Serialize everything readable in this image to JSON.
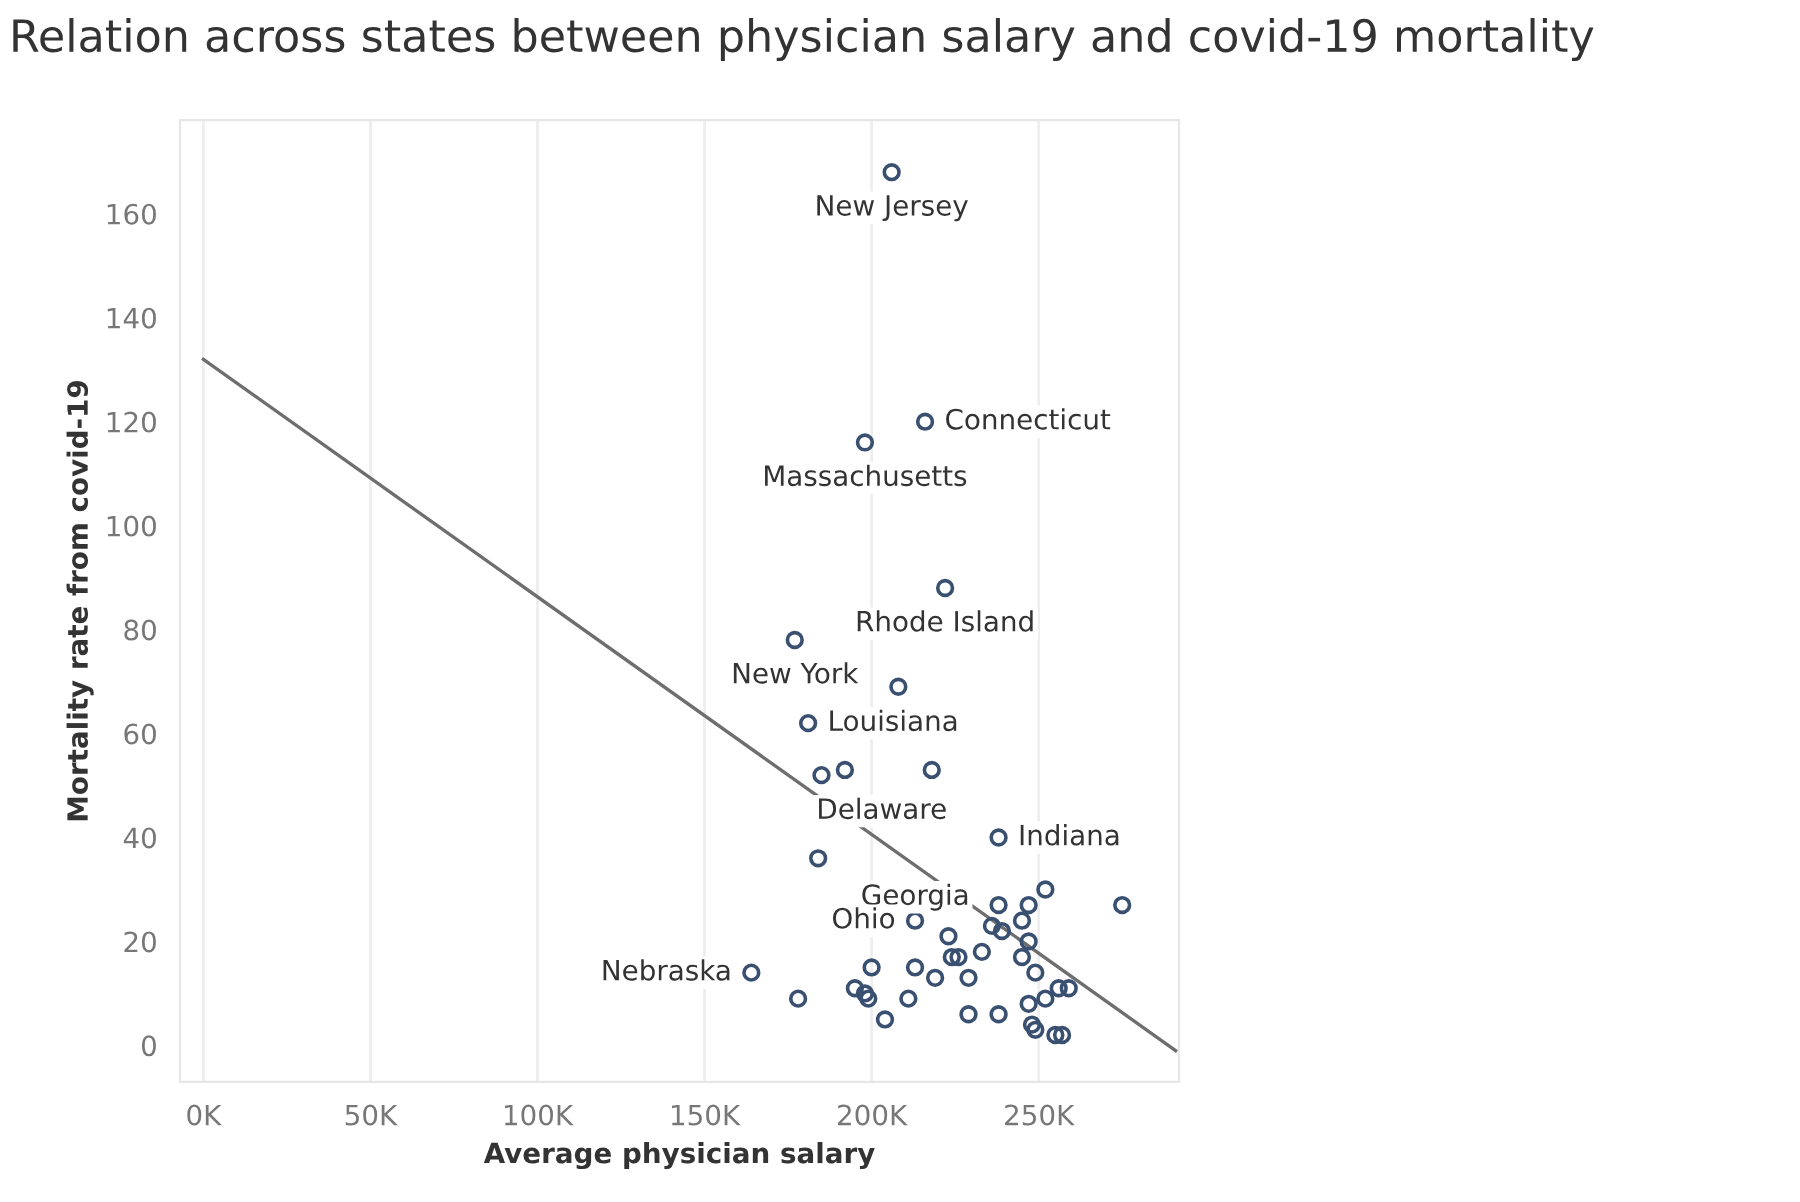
{
  "chart_data": {
    "type": "scatter",
    "title": "Relation across states between physician salary and covid-19 mortality",
    "xlabel": "Average physician salary",
    "ylabel": "Mortality rate from covid-19",
    "xlim": [
      -7000,
      292000
    ],
    "ylim": [
      -7,
      178
    ],
    "xticks": [
      {
        "value": 0,
        "label": "0K"
      },
      {
        "value": 50000,
        "label": "50K"
      },
      {
        "value": 100000,
        "label": "100K"
      },
      {
        "value": 150000,
        "label": "150K"
      },
      {
        "value": 200000,
        "label": "200K"
      },
      {
        "value": 250000,
        "label": "250K"
      }
    ],
    "yticks": [
      0,
      20,
      40,
      60,
      80,
      100,
      120,
      140,
      160
    ],
    "grid": "x",
    "series": [
      {
        "marker": "circle",
        "color": "#3a5070",
        "x": [
          206000,
          216000,
          198000,
          222000,
          177000,
          208000,
          181000,
          185000,
          192000,
          218000,
          238000,
          184000,
          252000,
          275000,
          238000,
          247000,
          213000,
          245000,
          236000,
          239000,
          223000,
          247000,
          233000,
          245000,
          224000,
          226000,
          213000,
          200000,
          164000,
          249000,
          219000,
          229000,
          178000,
          195000,
          198000,
          199000,
          211000,
          256000,
          259000,
          252000,
          247000,
          204000,
          229000,
          238000,
          248000,
          249000,
          255000,
          257000
        ],
        "values": [
          168,
          120,
          116,
          88,
          78,
          69,
          62,
          52,
          53,
          53,
          40,
          36,
          30,
          27,
          27,
          27,
          24,
          24,
          23,
          22,
          21,
          20,
          18,
          17,
          17,
          17,
          15,
          15,
          14,
          14,
          13,
          13,
          9,
          11,
          10,
          9,
          9,
          11,
          11,
          9,
          8,
          5,
          6,
          6,
          4,
          3,
          2,
          2
        ]
      },
      {
        "type": "line",
        "marker": "none",
        "color": "#6e6e6e",
        "x": [
          0,
          291000
        ],
        "values": [
          132,
          -1
        ]
      }
    ],
    "annotations": [
      {
        "text": "New Jersey",
        "x": 206000,
        "y": 168
      },
      {
        "text": "Connecticut",
        "x": 216000,
        "y": 120
      },
      {
        "text": "Massachusetts",
        "x": 198000,
        "y": 116
      },
      {
        "text": "Rhode Island",
        "x": 222000,
        "y": 88
      },
      {
        "text": "New York",
        "x": 177000,
        "y": 78
      },
      {
        "text": "Louisiana",
        "x": 181000,
        "y": 62
      },
      {
        "text": "Delaware",
        "x": 218000,
        "y": 53
      },
      {
        "text": "Indiana",
        "x": 238000,
        "y": 40
      },
      {
        "text": "Georgia",
        "x": 238000,
        "y": 27
      },
      {
        "text": "Ohio",
        "x": 213000,
        "y": 24
      },
      {
        "text": "Nebraska",
        "x": 164000,
        "y": 14
      }
    ]
  }
}
